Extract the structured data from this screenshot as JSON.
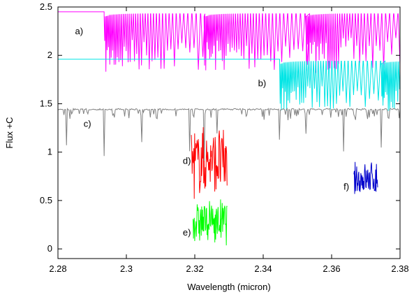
{
  "chart_data": {
    "type": "line",
    "title": "",
    "xlabel": "Wavelength (micron)",
    "ylabel": "Flux +C",
    "xlim": [
      2.28,
      2.38
    ],
    "ylim": [
      -0.1,
      2.5
    ],
    "x_ticks": [
      "2.28",
      "2.3",
      "2.32",
      "2.34",
      "2.36",
      "2.38"
    ],
    "y_ticks": [
      "0",
      "0.5",
      "1",
      "1.5",
      "2",
      "2.5"
    ],
    "x_tick_values": [
      2.28,
      2.3,
      2.32,
      2.34,
      2.36,
      2.38
    ],
    "y_tick_values": [
      0,
      0.5,
      1,
      1.5,
      2,
      2.5
    ],
    "grid": false,
    "series": [
      {
        "label": "a)",
        "color": "#ff00ff",
        "continuum": 2.45,
        "x_range": [
          2.28,
          2.38
        ],
        "band_heads": [
          2.2935,
          2.3227,
          2.3525
        ],
        "depth_range": [
          0.25,
          0.6
        ],
        "label_at": [
          2.285,
          2.22
        ]
      },
      {
        "label": "b)",
        "color": "#00e5e5",
        "continuum": 1.96,
        "x_range": [
          2.28,
          2.38
        ],
        "band_heads": [
          2.3448,
          2.3745
        ],
        "depth_range": [
          0.25,
          0.5
        ],
        "label_at": [
          2.3385,
          1.68
        ]
      },
      {
        "label": "c)",
        "color": "#808080",
        "continuum": 1.45,
        "x_range": [
          2.28,
          2.38
        ],
        "strong_lines": [
          2.2825,
          2.2935,
          2.3045,
          2.3184,
          2.3227,
          2.3265,
          2.3448,
          2.3525,
          2.3636,
          2.3745
        ],
        "label_at": [
          2.2875,
          1.26
        ]
      },
      {
        "label": "d)",
        "color": "#ff0000",
        "offset": 0.9,
        "amplitude": 0.4,
        "x_range": [
          2.319,
          2.3295
        ],
        "label_at": [
          2.3165,
          0.88
        ]
      },
      {
        "label": "e)",
        "color": "#00ff00",
        "offset": 0.28,
        "amplitude": 0.25,
        "x_range": [
          2.3195,
          2.3295
        ],
        "label_at": [
          2.3165,
          0.14
        ]
      },
      {
        "label": "f)",
        "color": "#0000cc",
        "offset": 0.72,
        "amplitude": 0.2,
        "x_range": [
          2.3665,
          2.3735
        ],
        "label_at": [
          2.3635,
          0.61
        ]
      }
    ]
  }
}
